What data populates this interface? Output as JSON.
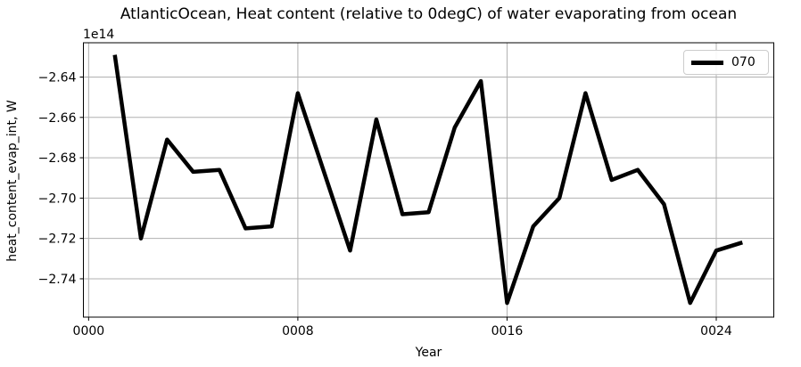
{
  "figure": {
    "background": "#ffffff"
  },
  "chart_data": {
    "type": "line",
    "title": "AtlanticOcean, Heat content (relative to 0degC) of water evaporating from ocean",
    "xlabel": "Year",
    "ylabel": "heat_content_evap_int, W",
    "y_offset_text": "1e14",
    "units_note": "y values are in units of 1e14 W",
    "grid": true,
    "legend_position": "upper right",
    "xlim": [
      -0.2,
      26.2
    ],
    "ylim": [
      -2.759,
      -2.623
    ],
    "x_ticks": {
      "values": [
        0,
        8,
        16,
        24
      ],
      "labels": [
        "0000",
        "0008",
        "0016",
        "0024"
      ]
    },
    "y_ticks": {
      "values": [
        -2.64,
        -2.66,
        -2.68,
        -2.7,
        -2.72,
        -2.74
      ],
      "labels": [
        "−2.64",
        "−2.66",
        "−2.68",
        "−2.70",
        "−2.72",
        "−2.74"
      ]
    },
    "series": [
      {
        "name": "070",
        "color": "#000000",
        "line_width": 4.5,
        "x": [
          1,
          2,
          3,
          4,
          5,
          6,
          7,
          8,
          9,
          10,
          11,
          12,
          13,
          14,
          15,
          16,
          17,
          18,
          19,
          20,
          21,
          22,
          23,
          24,
          25
        ],
        "y": [
          -2.629,
          -2.72,
          -2.671,
          -2.687,
          -2.686,
          -2.715,
          -2.714,
          -2.648,
          -2.687,
          -2.726,
          -2.661,
          -2.708,
          -2.707,
          -2.665,
          -2.642,
          -2.752,
          -2.714,
          -2.7,
          -2.648,
          -2.691,
          -2.686,
          -2.703,
          -2.752,
          -2.726,
          -2.722
        ]
      }
    ]
  },
  "colors": {
    "grid": "#b0b0b0",
    "spine": "#000000",
    "tick": "#000000",
    "text": "#000000",
    "legend_border": "#cccccc"
  }
}
